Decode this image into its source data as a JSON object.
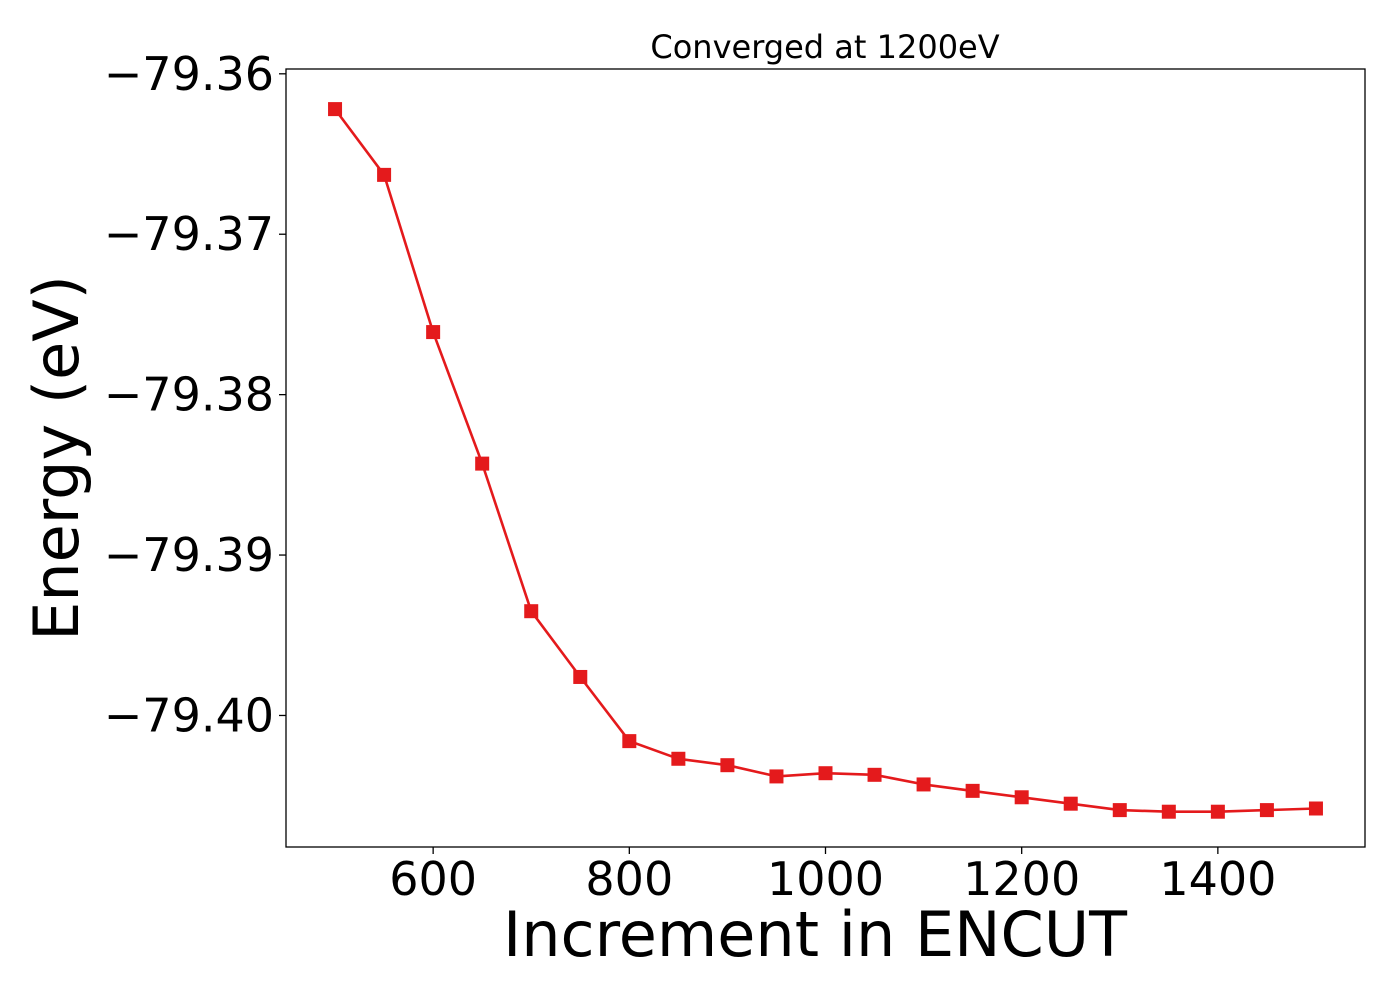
{
  "chart_data": {
    "type": "line",
    "title": "Converged at 1200eV",
    "xlabel": "Increment in ENCUT",
    "ylabel": "Energy (eV)",
    "xlim": [
      450,
      1550
    ],
    "ylim": [
      -79.4082,
      -79.3597
    ],
    "x_ticks": [
      600,
      800,
      1000,
      1200,
      1400
    ],
    "x_tick_labels": [
      "600",
      "800",
      "1000",
      "1200",
      "1400"
    ],
    "y_ticks": [
      -79.36,
      -79.37,
      -79.38,
      -79.39,
      -79.4
    ],
    "y_tick_labels": [
      "−79.36",
      "−79.37",
      "−79.38",
      "−79.39",
      "−79.40"
    ],
    "grid": false,
    "series": [
      {
        "color": "#e41a1c",
        "marker": "square",
        "x": [
          500,
          550,
          600,
          650,
          700,
          750,
          800,
          850,
          900,
          950,
          1000,
          1050,
          1100,
          1150,
          1200,
          1250,
          1300,
          1350,
          1400,
          1450,
          1500
        ],
        "y": [
          -79.3622,
          -79.3663,
          -79.3761,
          -79.3843,
          -79.3935,
          -79.3976,
          -79.4016,
          -79.4027,
          -79.4031,
          -79.4038,
          -79.4036,
          -79.4037,
          -79.4043,
          -79.4047,
          -79.4051,
          -79.4055,
          -79.4059,
          -79.406,
          -79.406,
          -79.4059,
          -79.4058
        ]
      }
    ]
  }
}
